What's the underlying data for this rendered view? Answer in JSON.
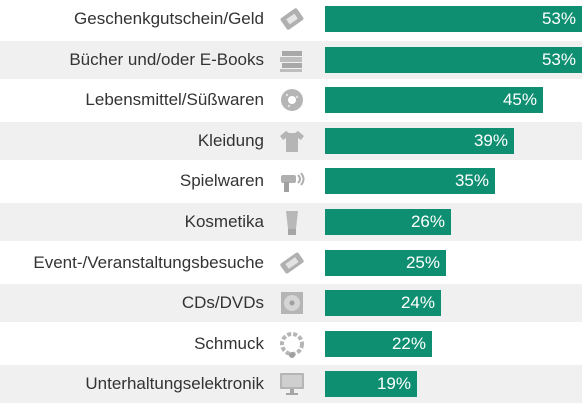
{
  "chart_data": {
    "type": "bar",
    "orientation": "horizontal",
    "categories": [
      "Geschenkgutschein/Geld",
      "Bücher und/oder E-Books",
      "Lebensmittel/Süßwaren",
      "Kleidung",
      "Spielwaren",
      "Kosmetika",
      "Event-/Veranstaltungsbesuche",
      "CDs/DVDs",
      "Schmuck",
      "Unterhaltungselektronik"
    ],
    "values": [
      53,
      53,
      45,
      39,
      35,
      26,
      25,
      24,
      22,
      19
    ],
    "value_labels": [
      "53%",
      "53%",
      "45%",
      "39%",
      "35%",
      "26%",
      "25%",
      "24%",
      "22%",
      "19%"
    ],
    "icons": [
      "gift-card-icon",
      "books-icon",
      "donut-icon",
      "tshirt-icon",
      "toy-gun-icon",
      "cosmetics-tube-icon",
      "ticket-icon",
      "disc-icon",
      "necklace-icon",
      "monitor-icon"
    ],
    "xlim": [
      0,
      53
    ],
    "bar_color": "#0f8f72",
    "stripe_color": "#f0f0f0",
    "grid": false,
    "legend": "none"
  }
}
